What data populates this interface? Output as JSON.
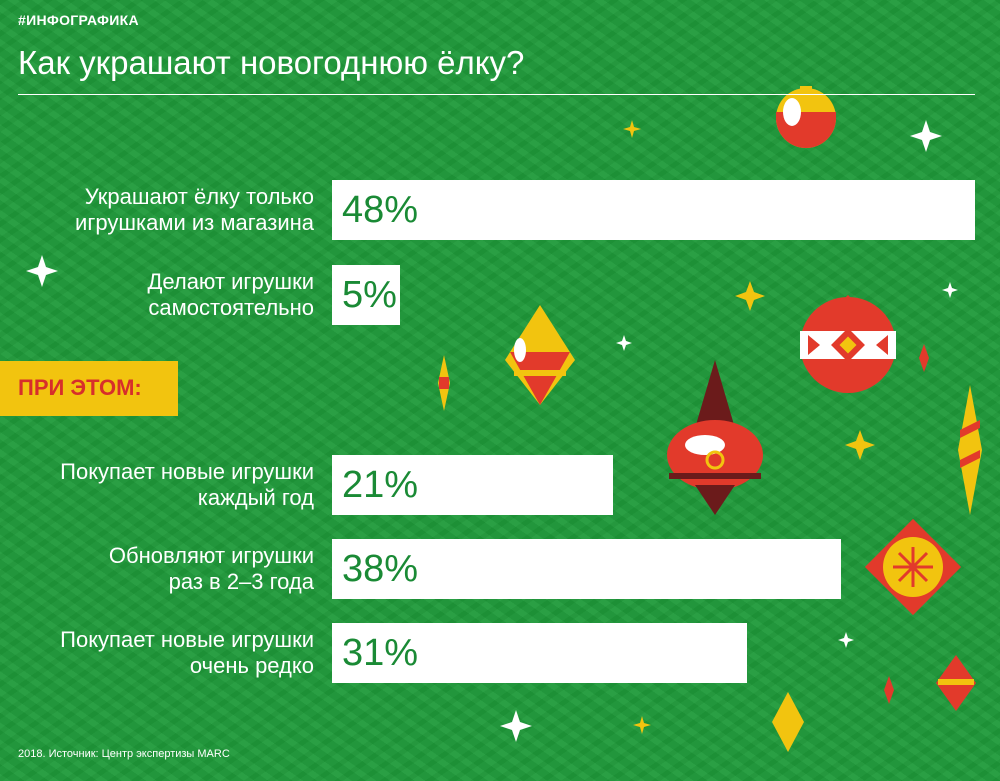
{
  "header": {
    "tag": "#ИНФОГРАФИКА",
    "title": "Как украшают новогоднюю ёлку?"
  },
  "section_label": "ПРИ ЭТОМ:",
  "source": "2018. Источник: Центр экспертизы MARC",
  "colors": {
    "background": "#1f9a3a",
    "bar": "#ffffff",
    "value_text": "#1a8a35",
    "section_bg": "#f2c40f",
    "section_text": "#d72e2b"
  },
  "chart_data": {
    "type": "bar",
    "orientation": "horizontal",
    "title": "Как украшают новогоднюю ёлку?",
    "categories": [
      "Украшают ёлку только игрушками из магазина",
      "Делают игрушки самостоятельно",
      "Покупает новые игрушки каждый год",
      "Обновляют игрушки раз в 2–3 года",
      "Покупает новые игрушки очень редко"
    ],
    "label_lines": [
      [
        "Украшают ёлку только",
        "игрушками из магазина"
      ],
      [
        "Делают игрушки",
        "самостоятельно"
      ],
      [
        "Покупает новые игрушки",
        "каждый год"
      ],
      [
        "Обновляют игрушки",
        "раз в 2–3 года"
      ],
      [
        "Покупает новые игрушки",
        "очень редко"
      ]
    ],
    "values": [
      48,
      5,
      21,
      38,
      31
    ],
    "value_labels": [
      "48%",
      "5%",
      "21%",
      "38%",
      "31%"
    ],
    "unit": "%",
    "xlim": [
      0,
      48
    ]
  }
}
